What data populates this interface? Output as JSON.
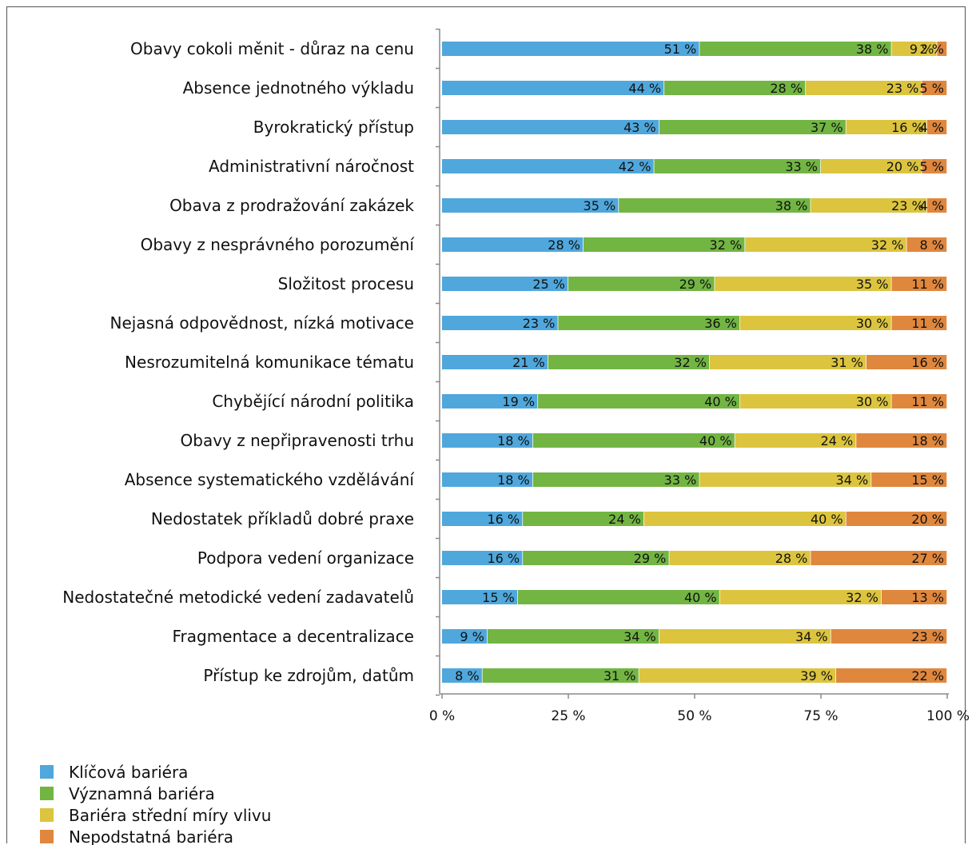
{
  "chart_data": {
    "type": "bar",
    "orientation": "horizontal",
    "stacked": "percent",
    "title": "",
    "xlabel": "",
    "ylabel": "",
    "xlim": [
      0,
      100
    ],
    "x_ticks": [
      "0 %",
      "25 %",
      "50 %",
      "75 %",
      "100 %"
    ],
    "x_tick_values": [
      0,
      25,
      50,
      75,
      100
    ],
    "grid": false,
    "legend_position": "bottom-left",
    "value_suffix": " %",
    "categories": [
      "Obavy cokoli měnit - důraz na cenu",
      "Absence jednotného výkladu",
      "Byrokratický přístup",
      "Administrativní náročnost",
      "Obava z prodražování zakázek",
      "Obavy z nesprávného porozumění",
      "Složitost procesu",
      "Nejasná odpovědnost, nízká motivace",
      "Nesrozumitelná komunikace tématu",
      "Chybějící národní politika",
      "Obavy z nepřipravenosti trhu",
      "Absence systematického vzdělávání",
      "Nedostatek příkladů dobré praxe",
      "Podpora vedení organizace",
      "Nedostatečné metodické vedení zadavatelů",
      "Fragmentace a decentralizace",
      "Přístup ke zdrojům, datům"
    ],
    "series": [
      {
        "name": "Klíčová bariéra",
        "color": "#4fa7dc",
        "values": [
          51,
          44,
          43,
          42,
          35,
          28,
          25,
          23,
          21,
          19,
          18,
          18,
          16,
          16,
          15,
          9,
          8
        ]
      },
      {
        "name": "Významná bariéra",
        "color": "#72b543",
        "values": [
          38,
          28,
          37,
          33,
          38,
          32,
          29,
          36,
          32,
          40,
          40,
          33,
          24,
          29,
          40,
          34,
          31
        ]
      },
      {
        "name": "Bariéra střední míry vlivu",
        "color": "#dcc43e",
        "values": [
          9,
          23,
          16,
          20,
          23,
          32,
          35,
          30,
          31,
          30,
          24,
          34,
          40,
          28,
          32,
          34,
          39
        ]
      },
      {
        "name": "Nepodstatná bariéra",
        "color": "#e0873e",
        "values": [
          2,
          5,
          4,
          5,
          4,
          8,
          11,
          11,
          16,
          11,
          18,
          15,
          20,
          27,
          13,
          23,
          22
        ]
      }
    ]
  }
}
